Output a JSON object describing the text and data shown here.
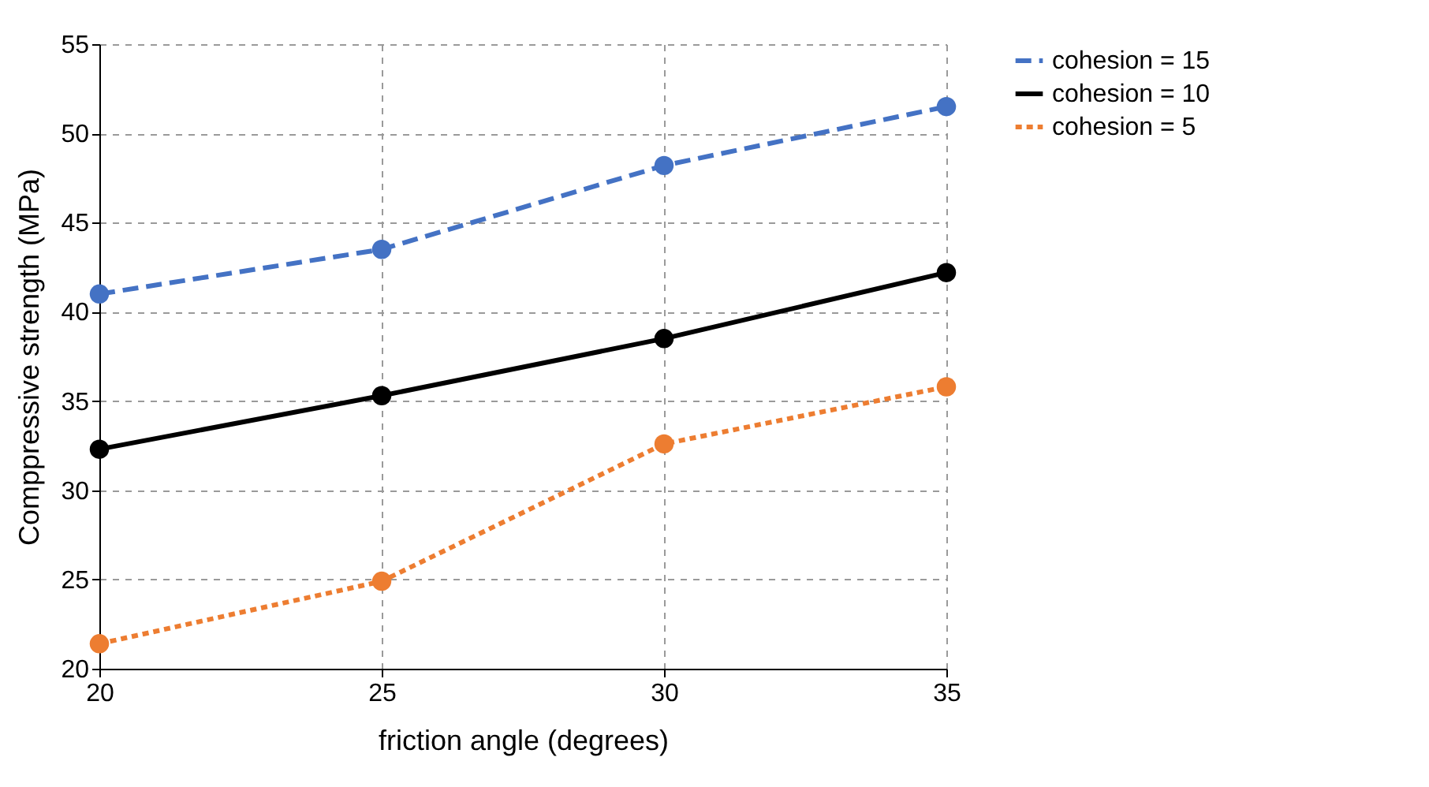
{
  "chart_data": {
    "type": "line",
    "xlabel": "friction angle (degrees)",
    "ylabel": "Comppressive strength (MPa)",
    "x": [
      20,
      25,
      30,
      35
    ],
    "series": [
      {
        "name": "cohesion = 15",
        "color": "#4472c4",
        "line_style": "dashed",
        "values": [
          41.0,
          43.5,
          48.2,
          51.5
        ]
      },
      {
        "name": "cohesion = 10",
        "color": "#000000",
        "line_style": "solid",
        "values": [
          32.3,
          35.3,
          38.5,
          42.2
        ]
      },
      {
        "name": "cohesion = 5",
        "color": "#ed7d31",
        "line_style": "dotted",
        "values": [
          21.4,
          24.9,
          32.6,
          35.8
        ]
      }
    ],
    "xlim": [
      20,
      35
    ],
    "xticks": [
      20,
      25,
      30,
      35
    ],
    "ylim": [
      20,
      55
    ],
    "yticks": [
      20,
      25,
      30,
      35,
      40,
      45,
      50,
      55
    ],
    "grid": true,
    "legend": "right",
    "marker": "circle"
  }
}
